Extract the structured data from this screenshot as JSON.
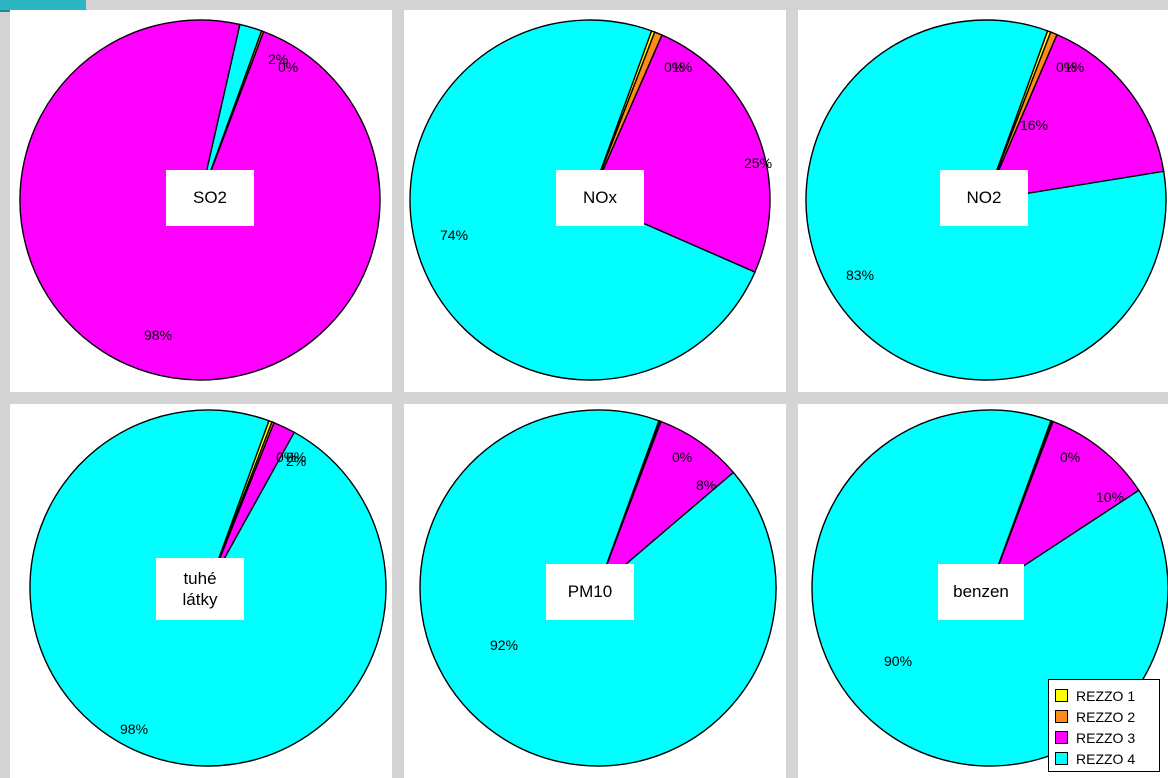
{
  "chart_data": [
    {
      "type": "pie",
      "title": "SO2",
      "slices": [
        {
          "name": "REZZO 1",
          "value": 0,
          "label": ""
        },
        {
          "name": "REZZO 2",
          "value": 0.2,
          "label": "0%"
        },
        {
          "name": "REZZO 3",
          "value": 97.8,
          "label": "98%"
        },
        {
          "name": "REZZO 4",
          "value": 2.0,
          "label": "2%"
        }
      ]
    },
    {
      "type": "pie",
      "title": "NOx",
      "slices": [
        {
          "name": "REZZO 1",
          "value": 0.3,
          "label": "0%"
        },
        {
          "name": "REZZO 2",
          "value": 0.7,
          "label": "1%"
        },
        {
          "name": "REZZO 3",
          "value": 25,
          "label": "25%"
        },
        {
          "name": "REZZO 4",
          "value": 74,
          "label": "74%"
        }
      ]
    },
    {
      "type": "pie",
      "title": "NO2",
      "slices": [
        {
          "name": "REZZO 1",
          "value": 0.3,
          "label": "0%"
        },
        {
          "name": "REZZO 2",
          "value": 0.6,
          "label": "1%"
        },
        {
          "name": "REZZO 3",
          "value": 16,
          "label": "16%"
        },
        {
          "name": "REZZO 4",
          "value": 83.1,
          "label": "83%"
        }
      ]
    },
    {
      "type": "pie",
      "title": "tuhé látky",
      "slices": [
        {
          "name": "REZZO 1",
          "value": 0.3,
          "label": "0%"
        },
        {
          "name": "REZZO 2",
          "value": 0.2,
          "label": "0%"
        },
        {
          "name": "REZZO 3",
          "value": 2,
          "label": "2%"
        },
        {
          "name": "REZZO 4",
          "value": 97.5,
          "label": "98%"
        }
      ]
    },
    {
      "type": "pie",
      "title": "PM10",
      "slices": [
        {
          "name": "REZZO 1",
          "value": 0.1,
          "label": "0%"
        },
        {
          "name": "REZZO 2",
          "value": 0.1,
          "label": ""
        },
        {
          "name": "REZZO 3",
          "value": 8,
          "label": "8%"
        },
        {
          "name": "REZZO 4",
          "value": 91.8,
          "label": "92%"
        }
      ]
    },
    {
      "type": "pie",
      "title": "benzen",
      "slices": [
        {
          "name": "REZZO 1",
          "value": 0.1,
          "label": "0%"
        },
        {
          "name": "REZZO 2",
          "value": 0.1,
          "label": ""
        },
        {
          "name": "REZZO 3",
          "value": 10,
          "label": "10%"
        },
        {
          "name": "REZZO 4",
          "value": 89.8,
          "label": "90%"
        }
      ]
    }
  ],
  "legend": {
    "placement": "bottom-right",
    "entries": [
      {
        "name": "REZZO 1",
        "color": "#ffff00"
      },
      {
        "name": "REZZO 2",
        "color": "#ff8c1a"
      },
      {
        "name": "REZZO 3",
        "color": "#ff00ff"
      },
      {
        "name": "REZZO 4",
        "color": "#00ffff"
      }
    ]
  },
  "colors": {
    "REZZO 1": "#ffff00",
    "REZZO 2": "#ff8c1a",
    "REZZO 3": "#ff00ff",
    "REZZO 4": "#00ffff"
  }
}
